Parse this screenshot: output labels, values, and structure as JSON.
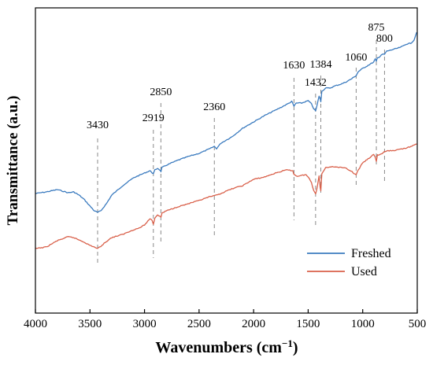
{
  "chart_data": {
    "type": "line",
    "xlabel": "Wavenumbers (cm",
    "xlabel_sup": "−1",
    "xlabel_end": ")",
    "ylabel": "Transmittance (a.u.)",
    "xlim": [
      4000,
      500
    ],
    "x_reversed": true,
    "x_ticks": [
      4000,
      3500,
      3000,
      2500,
      2000,
      1500,
      1000,
      500
    ],
    "x_tick_labels": [
      "4000",
      "3500",
      "3000",
      "2500",
      "2000",
      "1500",
      "1000",
      "500"
    ],
    "y_ticks_shown": false,
    "grid": false,
    "legend_position": "bottom-right",
    "annotations": [
      {
        "x": 3430,
        "label": "3430"
      },
      {
        "x": 2919,
        "label": "2919"
      },
      {
        "x": 2850,
        "label": "2850"
      },
      {
        "x": 2360,
        "label": "2360"
      },
      {
        "x": 1630,
        "label": "1630"
      },
      {
        "x": 1432,
        "label": "1432"
      },
      {
        "x": 1384,
        "label": "1384"
      },
      {
        "x": 1060,
        "label": "1060"
      },
      {
        "x": 875,
        "label": "875"
      },
      {
        "x": 800,
        "label": "800"
      }
    ],
    "series": [
      {
        "name": "Freshed",
        "color": "#3b7bbf",
        "points": [
          [
            4000,
            246
          ],
          [
            3900,
            244
          ],
          [
            3800,
            241
          ],
          [
            3700,
            245
          ],
          [
            3650,
            244
          ],
          [
            3600,
            248
          ],
          [
            3550,
            254
          ],
          [
            3500,
            262
          ],
          [
            3460,
            268
          ],
          [
            3430,
            270
          ],
          [
            3400,
            268
          ],
          [
            3350,
            259
          ],
          [
            3300,
            248
          ],
          [
            3200,
            236
          ],
          [
            3100,
            226
          ],
          [
            3000,
            220
          ],
          [
            2950,
            217
          ],
          [
            2935,
            219
          ],
          [
            2919,
            221
          ],
          [
            2905,
            216
          ],
          [
            2880,
            214
          ],
          [
            2860,
            216
          ],
          [
            2850,
            218
          ],
          [
            2840,
            213
          ],
          [
            2800,
            210
          ],
          [
            2700,
            204
          ],
          [
            2600,
            199
          ],
          [
            2500,
            195
          ],
          [
            2400,
            189
          ],
          [
            2360,
            186
          ],
          [
            2340,
            189
          ],
          [
            2300,
            182
          ],
          [
            2200,
            174
          ],
          [
            2100,
            163
          ],
          [
            2000,
            155
          ],
          [
            1900,
            147
          ],
          [
            1800,
            140
          ],
          [
            1700,
            133
          ],
          [
            1650,
            129
          ],
          [
            1630,
            135
          ],
          [
            1610,
            131
          ],
          [
            1560,
            131
          ],
          [
            1500,
            128
          ],
          [
            1470,
            132
          ],
          [
            1450,
            138
          ],
          [
            1432,
            141
          ],
          [
            1420,
            135
          ],
          [
            1400,
            122
          ],
          [
            1390,
            126
          ],
          [
            1384,
            129
          ],
          [
            1375,
            116
          ],
          [
            1340,
            112
          ],
          [
            1300,
            112
          ],
          [
            1250,
            109
          ],
          [
            1200,
            107
          ],
          [
            1150,
            104
          ],
          [
            1100,
            100
          ],
          [
            1060,
            96
          ],
          [
            1040,
            91
          ],
          [
            1000,
            87
          ],
          [
            950,
            83
          ],
          [
            900,
            79
          ],
          [
            885,
            75
          ],
          [
            875,
            78
          ],
          [
            865,
            73
          ],
          [
            850,
            73
          ],
          [
            820,
            69
          ],
          [
            800,
            69
          ],
          [
            780,
            65
          ],
          [
            750,
            64
          ],
          [
            700,
            62
          ],
          [
            650,
            60
          ],
          [
            600,
            56
          ],
          [
            560,
            55
          ],
          [
            530,
            51
          ],
          [
            505,
            41
          ]
        ]
      },
      {
        "name": "Used",
        "color": "#d9604a",
        "points": [
          [
            4000,
            316
          ],
          [
            3900,
            314
          ],
          [
            3800,
            306
          ],
          [
            3700,
            301
          ],
          [
            3650,
            302
          ],
          [
            3600,
            305
          ],
          [
            3550,
            308
          ],
          [
            3500,
            312
          ],
          [
            3460,
            314
          ],
          [
            3430,
            316
          ],
          [
            3400,
            313
          ],
          [
            3350,
            307
          ],
          [
            3300,
            302
          ],
          [
            3200,
            298
          ],
          [
            3100,
            292
          ],
          [
            3050,
            290
          ],
          [
            3000,
            286
          ],
          [
            2950,
            278
          ],
          [
            2930,
            280
          ],
          [
            2919,
            285
          ],
          [
            2905,
            277
          ],
          [
            2880,
            273
          ],
          [
            2860,
            275
          ],
          [
            2850,
            276
          ],
          [
            2840,
            271
          ],
          [
            2800,
            268
          ],
          [
            2700,
            263
          ],
          [
            2600,
            259
          ],
          [
            2500,
            255
          ],
          [
            2400,
            250
          ],
          [
            2360,
            249
          ],
          [
            2300,
            246
          ],
          [
            2200,
            240
          ],
          [
            2100,
            236
          ],
          [
            2000,
            228
          ],
          [
            1900,
            225
          ],
          [
            1800,
            220
          ],
          [
            1700,
            216
          ],
          [
            1640,
            217
          ],
          [
            1630,
            222
          ],
          [
            1600,
            224
          ],
          [
            1560,
            223
          ],
          [
            1520,
            222
          ],
          [
            1490,
            227
          ],
          [
            1470,
            232
          ],
          [
            1450,
            242
          ],
          [
            1432,
            246
          ],
          [
            1420,
            240
          ],
          [
            1400,
            224
          ],
          [
            1390,
            238
          ],
          [
            1384,
            243
          ],
          [
            1375,
            221
          ],
          [
            1340,
            213
          ],
          [
            1300,
            212
          ],
          [
            1250,
            212
          ],
          [
            1200,
            213
          ],
          [
            1150,
            214
          ],
          [
            1100,
            218
          ],
          [
            1080,
            221
          ],
          [
            1060,
            222
          ],
          [
            1040,
            216
          ],
          [
            1000,
            207
          ],
          [
            950,
            202
          ],
          [
            920,
            199
          ],
          [
            900,
            196
          ],
          [
            885,
            200
          ],
          [
            875,
            205
          ],
          [
            865,
            197
          ],
          [
            850,
            197
          ],
          [
            820,
            195
          ],
          [
            800,
            193
          ],
          [
            780,
            192
          ],
          [
            700,
            191
          ],
          [
            600,
            188
          ],
          [
            550,
            186
          ],
          [
            505,
            183
          ]
        ]
      }
    ]
  }
}
